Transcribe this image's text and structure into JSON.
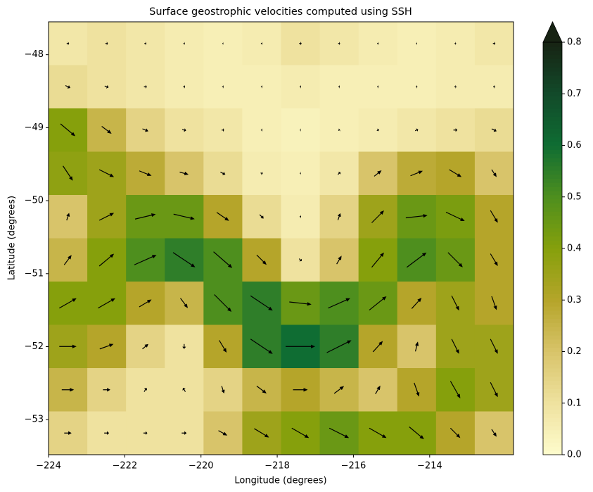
{
  "chart_data": {
    "type": "quiver_heatmap",
    "title": "Surface geostrophic velocities computed using SSH",
    "xlabel": "Longitude (degrees)",
    "ylabel": "Latitude (degrees)",
    "xlim": [
      -224.0,
      -211.8
    ],
    "ylim": [
      -53.48,
      -47.55
    ],
    "xticks": [
      {
        "value": -224,
        "label": "−224"
      },
      {
        "value": -222,
        "label": "−222"
      },
      {
        "value": -220,
        "label": "−220"
      },
      {
        "value": -218,
        "label": "−218"
      },
      {
        "value": -216,
        "label": "−216"
      },
      {
        "value": -214,
        "label": "−214"
      }
    ],
    "yticks": [
      {
        "value": -48,
        "label": "−48"
      },
      {
        "value": -49,
        "label": "−49"
      },
      {
        "value": -50,
        "label": "−50"
      },
      {
        "value": -51,
        "label": "−51"
      },
      {
        "value": -52,
        "label": "−52"
      },
      {
        "value": -53,
        "label": "−53"
      }
    ],
    "clim": [
      0,
      0.8
    ],
    "cticks": [
      {
        "value": 0,
        "label": "0.0"
      },
      0.1,
      0.2,
      0.3,
      0.4,
      0.5,
      0.6,
      0.7,
      0.8
    ],
    "colormap": [
      "#fefccd",
      "#efe29f",
      "#d8c46a",
      "#b5a52a",
      "#86a00c",
      "#4e8f1e",
      "#0f6d33",
      "#124a2a",
      "#172313"
    ],
    "arrow_color": "#000000",
    "values": [
      [
        0.08,
        0.1,
        0.08,
        0.06,
        0.05,
        0.06,
        0.1,
        0.08,
        0.06,
        0.05,
        0.06,
        0.08
      ],
      [
        0.12,
        0.1,
        0.08,
        0.06,
        0.05,
        0.05,
        0.06,
        0.05,
        0.05,
        0.05,
        0.06,
        0.06
      ],
      [
        0.4,
        0.25,
        0.15,
        0.1,
        0.08,
        0.05,
        0.04,
        0.05,
        0.06,
        0.08,
        0.1,
        0.12
      ],
      [
        0.38,
        0.35,
        0.28,
        0.2,
        0.12,
        0.06,
        0.05,
        0.08,
        0.2,
        0.28,
        0.3,
        0.2
      ],
      [
        0.2,
        0.35,
        0.45,
        0.45,
        0.3,
        0.12,
        0.06,
        0.15,
        0.35,
        0.45,
        0.42,
        0.3
      ],
      [
        0.25,
        0.4,
        0.5,
        0.55,
        0.5,
        0.3,
        0.1,
        0.2,
        0.4,
        0.5,
        0.45,
        0.3
      ],
      [
        0.4,
        0.4,
        0.3,
        0.25,
        0.5,
        0.55,
        0.45,
        0.5,
        0.45,
        0.3,
        0.35,
        0.3
      ],
      [
        0.35,
        0.3,
        0.15,
        0.1,
        0.3,
        0.55,
        0.6,
        0.55,
        0.3,
        0.2,
        0.35,
        0.35
      ],
      [
        0.25,
        0.15,
        0.1,
        0.1,
        0.15,
        0.25,
        0.3,
        0.25,
        0.2,
        0.3,
        0.4,
        0.35
      ],
      [
        0.15,
        0.1,
        0.1,
        0.1,
        0.2,
        0.35,
        0.4,
        0.45,
        0.4,
        0.4,
        0.3,
        0.2
      ]
    ],
    "u": [
      [
        0.05,
        0.05,
        0.04,
        0.03,
        0.02,
        0.03,
        0.05,
        0.04,
        0.03,
        0.02,
        0.03,
        0.05
      ],
      [
        0.1,
        0.08,
        0.06,
        0.04,
        0.03,
        0.03,
        0.03,
        0.03,
        0.03,
        0.03,
        0.04,
        0.04
      ],
      [
        0.3,
        0.2,
        0.12,
        0.08,
        0.05,
        0.03,
        0.02,
        0.03,
        0.04,
        0.06,
        0.08,
        0.1
      ],
      [
        0.2,
        0.3,
        0.25,
        0.18,
        0.1,
        0.04,
        0.02,
        0.05,
        0.15,
        0.25,
        0.25,
        0.1
      ],
      [
        0.05,
        0.3,
        0.42,
        0.43,
        0.25,
        0.08,
        0.03,
        0.05,
        0.25,
        0.44,
        0.38,
        0.15
      ],
      [
        0.15,
        0.3,
        0.45,
        0.45,
        0.38,
        0.2,
        0.05,
        0.1,
        0.25,
        0.4,
        0.3,
        0.15
      ],
      [
        0.35,
        0.35,
        0.25,
        0.15,
        0.35,
        0.45,
        0.45,
        0.45,
        0.35,
        0.2,
        0.15,
        0.1
      ],
      [
        0.35,
        0.28,
        0.12,
        0.0,
        0.15,
        0.45,
        0.6,
        0.5,
        0.2,
        0.05,
        0.15,
        0.15
      ],
      [
        0.25,
        0.15,
        0.05,
        -0.05,
        0.05,
        0.2,
        0.3,
        0.2,
        0.1,
        0.1,
        0.2,
        0.15
      ],
      [
        0.15,
        0.1,
        0.08,
        0.1,
        0.18,
        0.3,
        0.35,
        0.4,
        0.35,
        0.3,
        0.2,
        0.1
      ]
    ],
    "v": [
      [
        0,
        0,
        0,
        0,
        0,
        0,
        0,
        0,
        0,
        0,
        0,
        0
      ],
      [
        -0.05,
        -0.03,
        0,
        0,
        0,
        0,
        0,
        0,
        0,
        0,
        0,
        0
      ],
      [
        -0.25,
        -0.15,
        -0.05,
        -0.02,
        0,
        0,
        0,
        0.02,
        0.03,
        0.03,
        0,
        -0.05
      ],
      [
        -0.3,
        -0.15,
        -0.1,
        -0.05,
        -0.05,
        -0.02,
        0,
        0.05,
        0.12,
        0.1,
        -0.15,
        -0.15
      ],
      [
        0.15,
        0.15,
        0.1,
        -0.1,
        -0.17,
        -0.08,
        0,
        0.14,
        0.25,
        0.05,
        -0.18,
        -0.25
      ],
      [
        0.2,
        0.25,
        0.2,
        -0.3,
        -0.33,
        -0.2,
        -0.05,
        0.17,
        0.3,
        0.3,
        -0.3,
        -0.25
      ],
      [
        0.2,
        0.2,
        0.15,
        -0.2,
        -0.35,
        -0.3,
        -0.05,
        0.2,
        0.28,
        0.22,
        -0.3,
        -0.28
      ],
      [
        0,
        0.1,
        0.1,
        -0.1,
        -0.25,
        -0.3,
        0,
        0.25,
        0.22,
        0.2,
        -0.3,
        -0.3
      ],
      [
        0,
        0,
        0.08,
        0.08,
        -0.15,
        -0.15,
        0,
        0.15,
        0.17,
        -0.28,
        -0.35,
        -0.3
      ],
      [
        0,
        0,
        0,
        0,
        -0.1,
        -0.18,
        -0.2,
        -0.2,
        -0.2,
        -0.25,
        -0.2,
        -0.15
      ]
    ]
  }
}
